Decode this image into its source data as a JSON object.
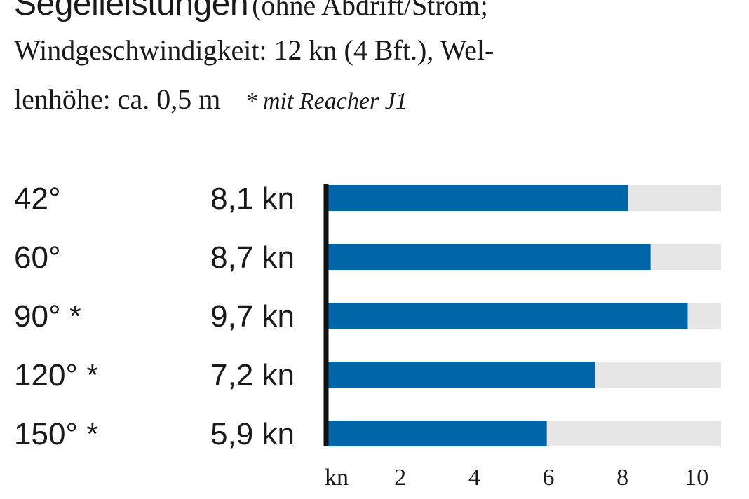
{
  "header": {
    "title": "Segelleistungen",
    "subtitle_line1": "(ohne Abdrift/Strom;",
    "subtitle_line2": "Windgeschwindigkeit: 12 kn (4 Bft.), Wel-",
    "subtitle_line3": "lenhöhe: ca. 0,5 m",
    "footnote": "* mit Reacher J1"
  },
  "chart_data": {
    "type": "bar",
    "orientation": "horizontal",
    "categories": [
      "42°",
      "60°",
      "90° *",
      "120° *",
      "150° *"
    ],
    "values": [
      8.1,
      8.7,
      9.7,
      7.2,
      5.9
    ],
    "value_labels": [
      "8,1 kn",
      "8,7 kn",
      "9,7 kn",
      "7,2 kn",
      "5,9 kn"
    ],
    "x_unit_label": "kn",
    "x_ticks": [
      2,
      4,
      6,
      8,
      10
    ],
    "xlim": [
      0,
      10.6
    ],
    "grid": false,
    "colors": {
      "bar": "#0066a8",
      "track": "#e6e6e6",
      "axis": "#111111"
    }
  }
}
